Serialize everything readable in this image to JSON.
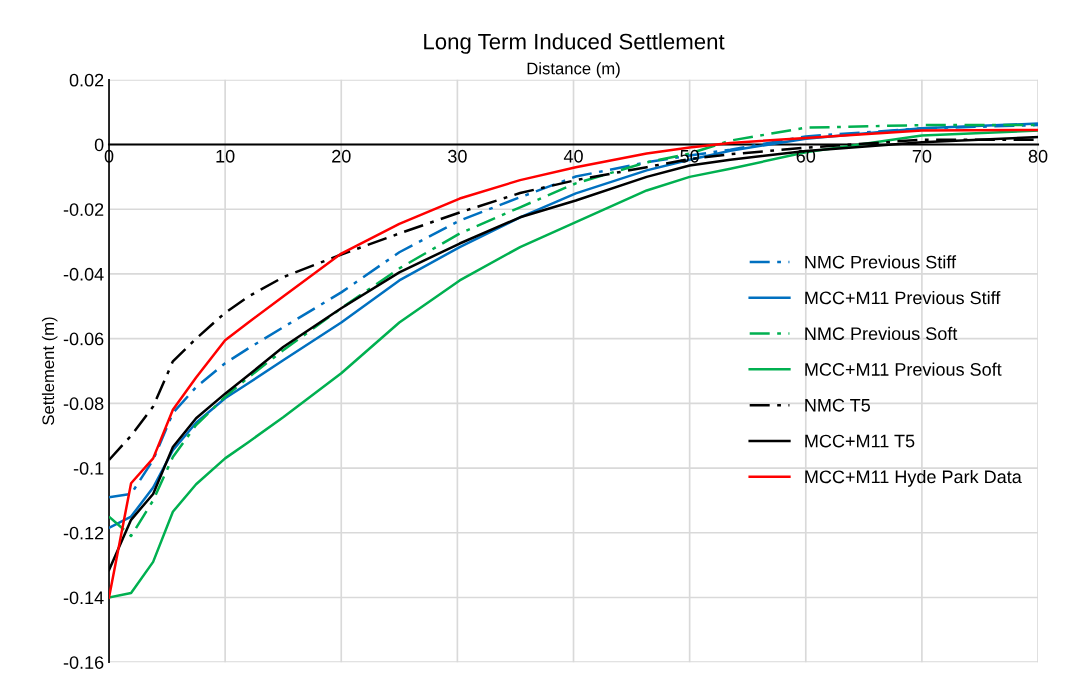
{
  "chart_data": {
    "type": "line",
    "title": "Long Term Induced Settlement",
    "xlabel": "Distance (m)",
    "ylabel": "Settlement (m)",
    "x": [
      0,
      1.9,
      3.8,
      5.5,
      7.5,
      10,
      12,
      15,
      20,
      25,
      30.2,
      35.4,
      40.2,
      46.3,
      50,
      53.5,
      60,
      70,
      80
    ],
    "xlim": [
      0,
      80
    ],
    "xticks": [
      0,
      10,
      20,
      30,
      40,
      50,
      60,
      70,
      80
    ],
    "ylim": [
      -0.16,
      0.02
    ],
    "yticks": [
      -0.16,
      -0.14,
      -0.12,
      -0.1,
      -0.08,
      -0.06,
      -0.04,
      -0.02,
      0,
      0.02
    ],
    "grid": true,
    "legend": "right",
    "marker": "none",
    "series": [
      {
        "name": "NMC Previous Stiff",
        "color": "#0070c0",
        "line_style": "dashdot",
        "values": [
          -0.109,
          -0.108,
          -0.0975,
          -0.083,
          -0.075,
          -0.0676,
          -0.063,
          -0.0565,
          -0.0457,
          -0.0333,
          -0.0235,
          -0.0163,
          -0.0099,
          -0.0055,
          -0.0034,
          -0.0016,
          0.0025,
          0.005,
          0.006
        ]
      },
      {
        "name": "MCC+M11 Previous Stiff",
        "color": "#0070c0",
        "line_style": "solid",
        "values": [
          -0.1185,
          -0.115,
          -0.106,
          -0.0945,
          -0.086,
          -0.0784,
          -0.0738,
          -0.0667,
          -0.055,
          -0.042,
          -0.0317,
          -0.0225,
          -0.0151,
          -0.008,
          -0.0047,
          -0.0019,
          0.0018,
          0.005,
          0.0065
        ]
      },
      {
        "name": "NMC Previous Soft",
        "color": "#00b050",
        "line_style": "dashdot",
        "values": [
          -0.115,
          -0.121,
          -0.11,
          -0.0966,
          -0.0867,
          -0.078,
          -0.072,
          -0.0636,
          -0.0506,
          -0.0383,
          -0.0275,
          -0.0194,
          -0.012,
          -0.0055,
          -0.0028,
          0.0012,
          0.0052,
          0.006,
          0.006
        ]
      },
      {
        "name": "MCC+M11 Previous Soft",
        "color": "#00b050",
        "line_style": "solid",
        "values": [
          -0.14,
          -0.1386,
          -0.129,
          -0.1135,
          -0.105,
          -0.097,
          -0.092,
          -0.0843,
          -0.0707,
          -0.055,
          -0.042,
          -0.0317,
          -0.024,
          -0.0142,
          -0.01,
          -0.0075,
          -0.0024,
          0.0028,
          0.0043
        ]
      },
      {
        "name": "NMC T5",
        "color": "#000000",
        "line_style": "dashdot",
        "values": [
          -0.0975,
          -0.09,
          -0.081,
          -0.067,
          -0.06,
          -0.052,
          -0.047,
          -0.041,
          -0.034,
          -0.0275,
          -0.021,
          -0.015,
          -0.011,
          -0.007,
          -0.0045,
          -0.003,
          -0.001,
          0.0015,
          0.0015
        ]
      },
      {
        "name": "MCC+M11 T5",
        "color": "#000000",
        "line_style": "solid",
        "values": [
          -0.1315,
          -0.116,
          -0.108,
          -0.0935,
          -0.0846,
          -0.077,
          -0.0713,
          -0.0626,
          -0.0506,
          -0.0395,
          -0.0306,
          -0.0225,
          -0.0173,
          -0.01,
          -0.0065,
          -0.0047,
          -0.002,
          0.0007,
          0.0023
        ]
      },
      {
        "name": "MCC+M11 Hyde Park Data",
        "color": "#ff0000",
        "line_style": "solid",
        "values": [
          -0.14,
          -0.1047,
          -0.097,
          -0.082,
          -0.072,
          -0.0605,
          -0.055,
          -0.047,
          -0.0337,
          -0.0245,
          -0.0167,
          -0.011,
          -0.007,
          -0.0028,
          -0.0009,
          0.0005,
          0.002,
          0.0043,
          0.0045
        ]
      }
    ]
  }
}
